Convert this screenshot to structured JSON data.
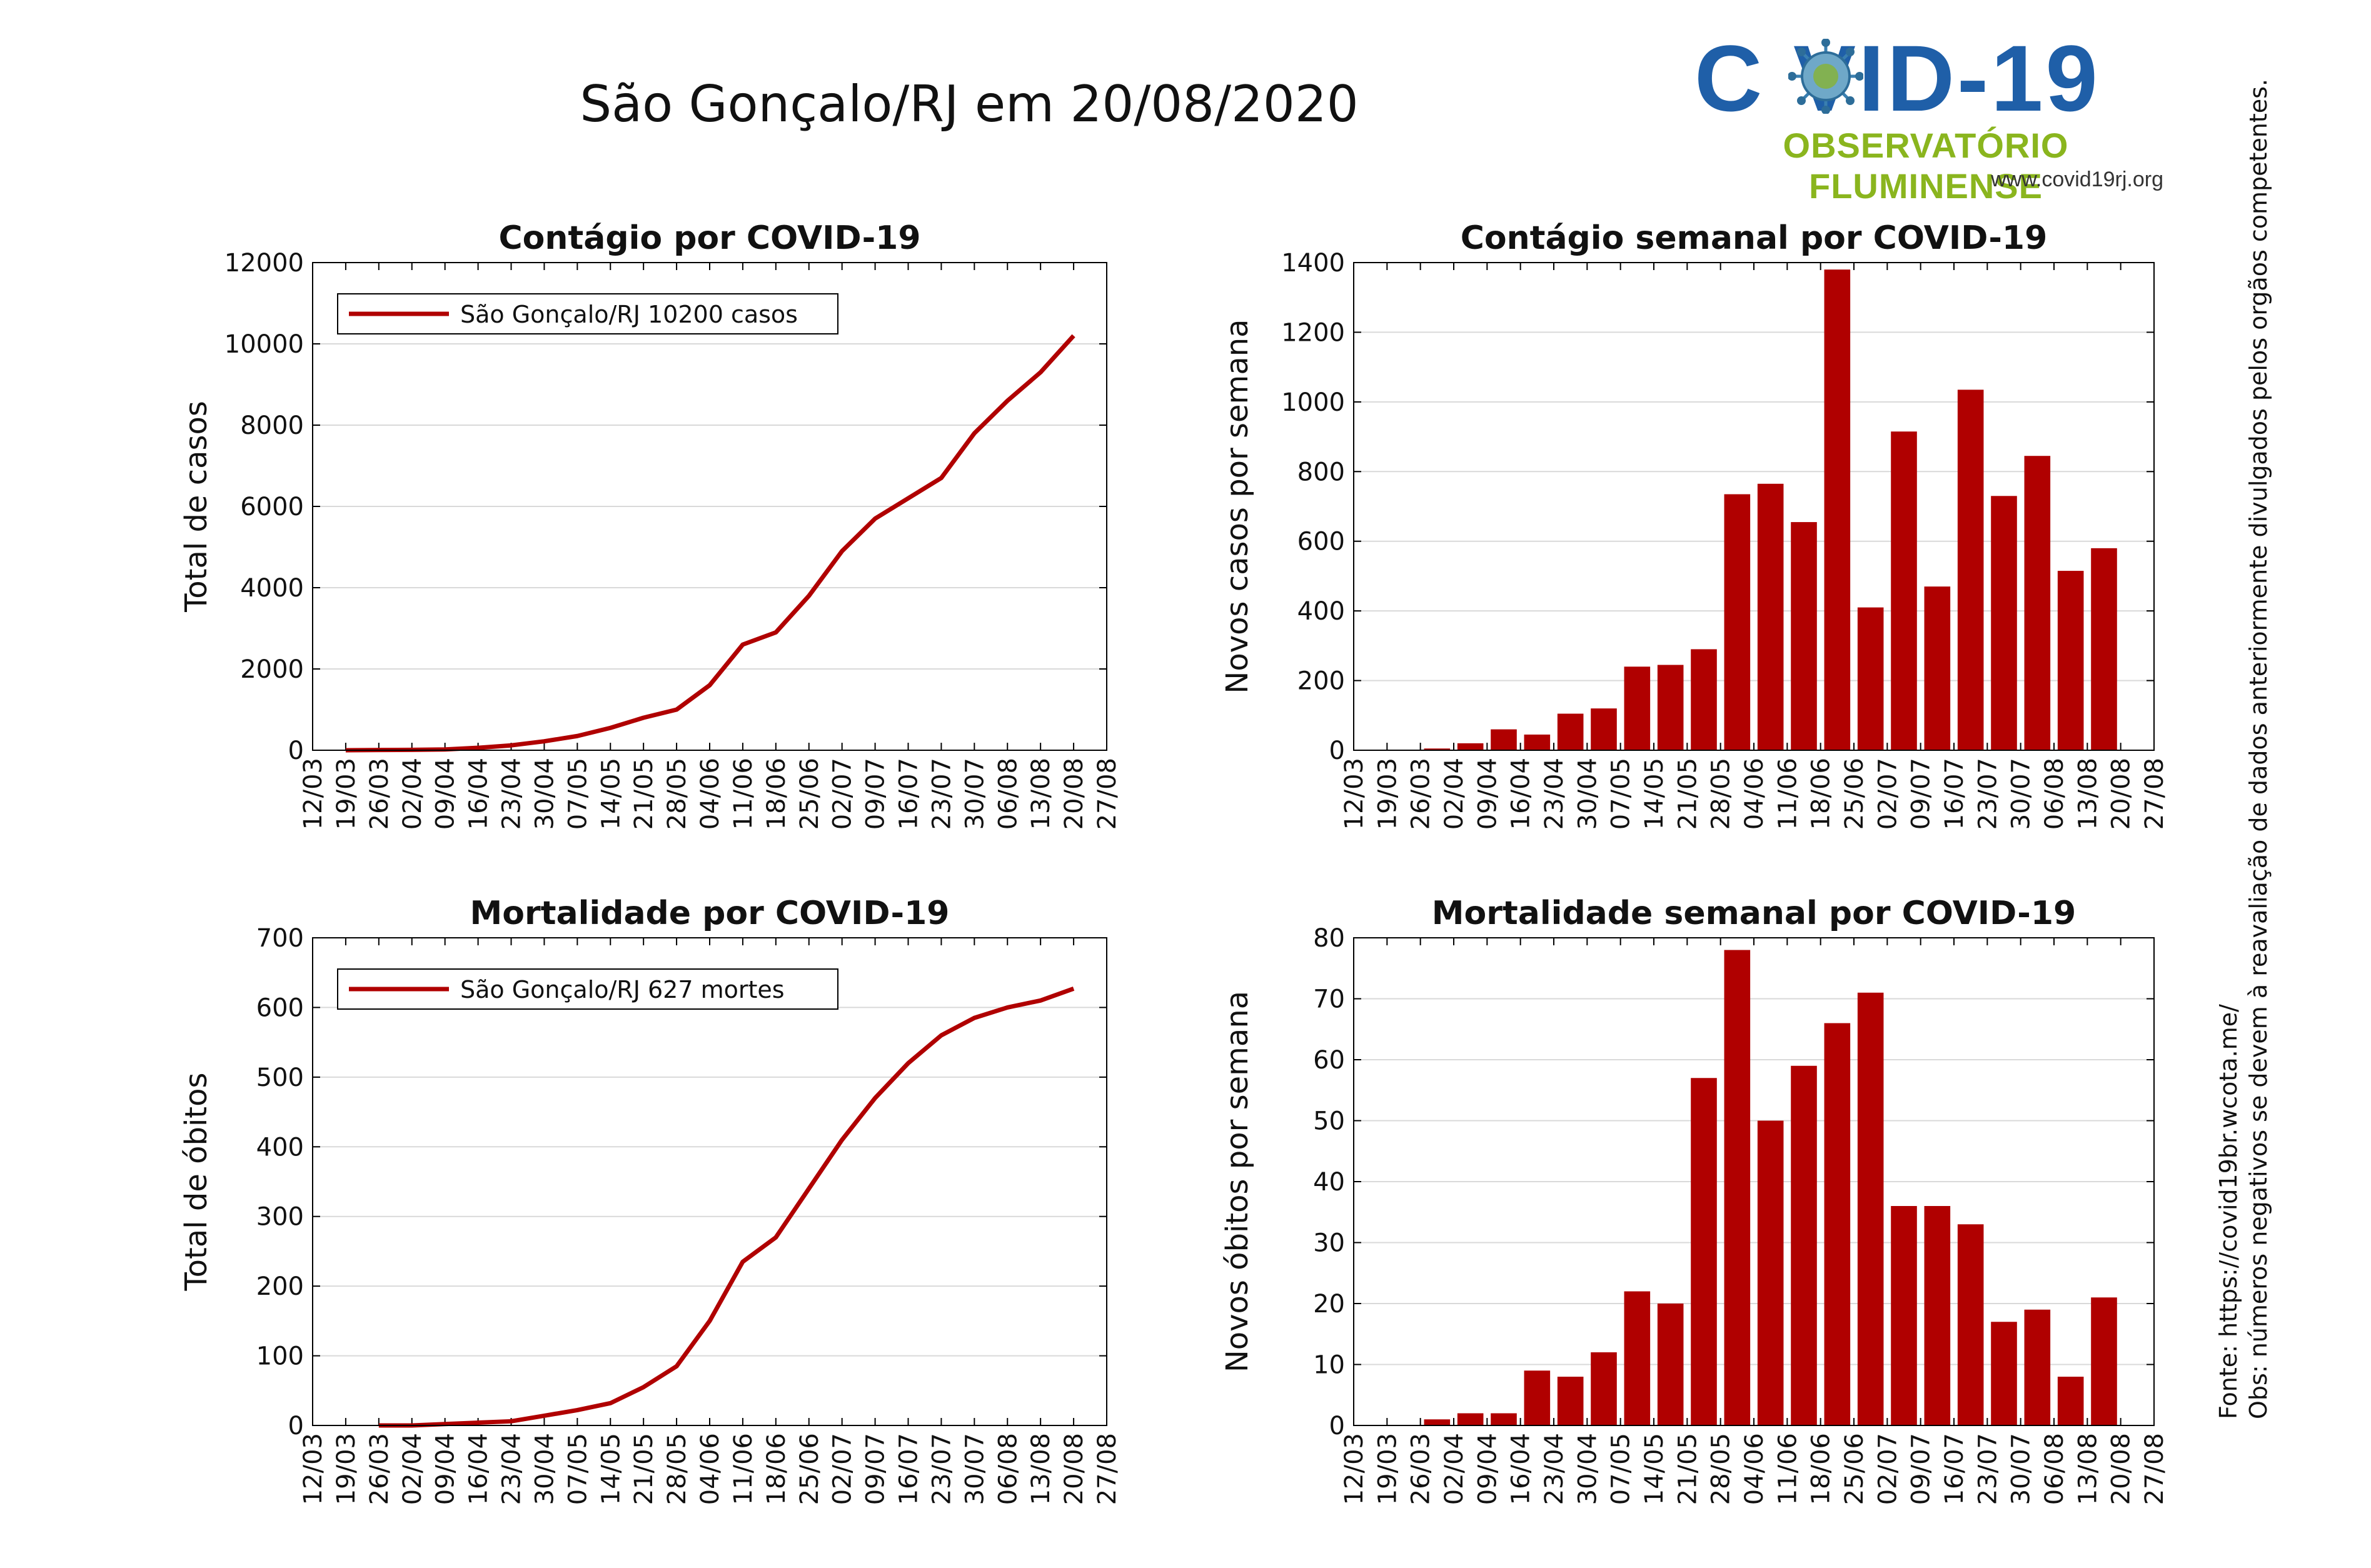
{
  "page": {
    "title": "São Gonçalo/RJ em 20/08/2020"
  },
  "logo": {
    "word": "C  VID-19",
    "subtitle": "OBSERVATÓRIO FLUMINENSE",
    "url": "www.covid19rj.org",
    "icon": "virus-icon",
    "colors": {
      "word": "#1f5fa8",
      "subtitle": "#8ab51e",
      "virus": "#3a7fb0"
    }
  },
  "notes": {
    "source": "Fonte: https://covid19br.wcota.me/",
    "obs": "Obs: números negativos se devem à reavaliação de dados anteriormente divulgados pelos orgãos competentes."
  },
  "colors": {
    "series": "#b00000",
    "grid": "#d9d9d9",
    "axis": "#000000"
  },
  "chart_data": [
    {
      "id": "cases-total",
      "type": "line",
      "title": "Contágio por COVID-19",
      "xlabel": "",
      "ylabel": "Total de casos",
      "ylim": [
        0,
        12000
      ],
      "yticks": [
        0,
        2000,
        4000,
        6000,
        8000,
        10000,
        12000
      ],
      "xticks": [
        "12/03",
        "19/03",
        "26/03",
        "02/04",
        "09/04",
        "16/04",
        "23/04",
        "30/04",
        "07/05",
        "14/05",
        "21/05",
        "28/05",
        "04/06",
        "11/06",
        "18/06",
        "25/06",
        "02/07",
        "09/07",
        "16/07",
        "23/07",
        "30/07",
        "06/08",
        "13/08",
        "20/08",
        "27/08"
      ],
      "grid": true,
      "legend": "top-left",
      "series": [
        {
          "name": "São Gonçalo/RJ  10200 casos",
          "x": [
            7,
            14,
            21,
            28,
            35,
            42,
            49,
            56,
            63,
            70,
            77,
            84,
            91,
            98,
            105,
            112,
            119,
            126,
            133,
            140,
            147,
            154,
            161
          ],
          "y": [
            0,
            5,
            10,
            20,
            60,
            120,
            220,
            350,
            550,
            800,
            1000,
            1600,
            2600,
            2900,
            3800,
            4900,
            5700,
            6200,
            6700,
            7800,
            8600,
            9300,
            10200
          ]
        }
      ]
    },
    {
      "id": "cases-weekly",
      "type": "bar",
      "title": "Contágio semanal por COVID-19",
      "xlabel": "",
      "ylabel": "Novos casos por semana",
      "ylim": [
        0,
        1400
      ],
      "yticks": [
        0,
        200,
        400,
        600,
        800,
        1000,
        1200,
        1400
      ],
      "xticks": [
        "12/03",
        "19/03",
        "26/03",
        "02/04",
        "09/04",
        "16/04",
        "23/04",
        "30/04",
        "07/05",
        "14/05",
        "21/05",
        "28/05",
        "04/06",
        "11/06",
        "18/06",
        "25/06",
        "02/07",
        "09/07",
        "16/07",
        "23/07",
        "30/07",
        "06/08",
        "13/08",
        "20/08",
        "27/08"
      ],
      "grid": true,
      "categories": [
        "02/04",
        "09/04",
        "16/04",
        "23/04",
        "30/04",
        "07/05",
        "14/05",
        "21/05",
        "28/05",
        "04/06",
        "11/06",
        "18/06",
        "25/06",
        "02/07",
        "09/07",
        "16/07",
        "23/07",
        "30/07",
        "06/08",
        "13/08",
        "20/08"
      ],
      "values": [
        5,
        20,
        60,
        45,
        105,
        120,
        240,
        245,
        290,
        735,
        765,
        655,
        1380,
        410,
        915,
        470,
        1035,
        730,
        845,
        515,
        580
      ]
    },
    {
      "id": "deaths-total",
      "type": "line",
      "title": "Mortalidade por COVID-19",
      "xlabel": "",
      "ylabel": "Total de óbitos",
      "ylim": [
        0,
        700
      ],
      "yticks": [
        0,
        100,
        200,
        300,
        400,
        500,
        600,
        700
      ],
      "xticks": [
        "12/03",
        "19/03",
        "26/03",
        "02/04",
        "09/04",
        "16/04",
        "23/04",
        "30/04",
        "07/05",
        "14/05",
        "21/05",
        "28/05",
        "04/06",
        "11/06",
        "18/06",
        "25/06",
        "02/07",
        "09/07",
        "16/07",
        "23/07",
        "30/07",
        "06/08",
        "13/08",
        "20/08",
        "27/08"
      ],
      "grid": true,
      "legend": "top-left",
      "series": [
        {
          "name": "São Gonçalo/RJ  627 mortes",
          "x": [
            14,
            21,
            28,
            35,
            42,
            49,
            56,
            63,
            70,
            77,
            84,
            91,
            98,
            105,
            112,
            119,
            126,
            133,
            140,
            147,
            154,
            161
          ],
          "y": [
            0,
            0,
            2,
            4,
            6,
            14,
            22,
            32,
            55,
            85,
            150,
            235,
            270,
            340,
            410,
            470,
            520,
            560,
            585,
            600,
            610,
            627
          ]
        }
      ]
    },
    {
      "id": "deaths-weekly",
      "type": "bar",
      "title": "Mortalidade semanal por COVID-19",
      "xlabel": "",
      "ylabel": "Novos óbitos por semana",
      "ylim": [
        0,
        80
      ],
      "yticks": [
        0,
        10,
        20,
        30,
        40,
        50,
        60,
        70,
        80
      ],
      "xticks": [
        "12/03",
        "19/03",
        "26/03",
        "02/04",
        "09/04",
        "16/04",
        "23/04",
        "30/04",
        "07/05",
        "14/05",
        "21/05",
        "28/05",
        "04/06",
        "11/06",
        "18/06",
        "25/06",
        "02/07",
        "09/07",
        "16/07",
        "23/07",
        "30/07",
        "06/08",
        "13/08",
        "20/08",
        "27/08"
      ],
      "grid": true,
      "categories": [
        "02/04",
        "09/04",
        "16/04",
        "23/04",
        "30/04",
        "07/05",
        "14/05",
        "21/05",
        "28/05",
        "04/06",
        "11/06",
        "18/06",
        "25/06",
        "02/07",
        "09/07",
        "16/07",
        "23/07",
        "30/07",
        "06/08",
        "13/08",
        "20/08"
      ],
      "values": [
        1,
        2,
        2,
        9,
        8,
        12,
        22,
        20,
        57,
        78,
        50,
        59,
        66,
        71,
        36,
        36,
        33,
        17,
        19,
        8,
        21
      ]
    }
  ]
}
